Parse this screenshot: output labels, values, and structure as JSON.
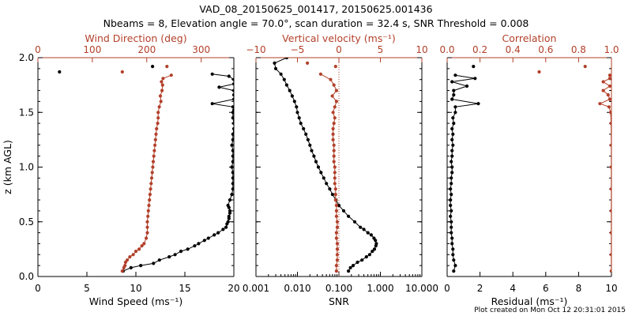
{
  "header": {
    "title": "VAD_08_20150625_001417, 20150625.001436",
    "subtitle": "Nbeams = 8, Elevation angle = 70.0°, scan duration = 32.4 s, SNR Threshold = 0.008"
  },
  "footer": {
    "created": "Plot created on Mon Oct 12 20:31:01 2015"
  },
  "colors": {
    "black": "#000000",
    "red": "#b2402a"
  },
  "chart_data": [
    {
      "type": "line",
      "panel": "wind",
      "ylabel": "z (km AGL)",
      "ylim": [
        0,
        2
      ],
      "yticks": [
        "0.0",
        "0.5",
        "1.0",
        "1.5",
        "2.0"
      ],
      "bottom_axis": {
        "label": "Wind Speed (ms⁻¹)",
        "range": [
          0,
          20
        ],
        "ticks": [
          "0",
          "5",
          "10",
          "15",
          "20"
        ]
      },
      "top_axis": {
        "label": "Wind Direction (deg)",
        "range": [
          0,
          360
        ],
        "ticks": [
          "0",
          "100",
          "200",
          "300"
        ]
      },
      "series": [
        {
          "axis": "bottom",
          "color": "#000000",
          "style": "line+points",
          "z": [
            0.05,
            0.08,
            0.1,
            0.12,
            0.15,
            0.18,
            0.2,
            0.23,
            0.25,
            0.28,
            0.3,
            0.33,
            0.35,
            0.38,
            0.4,
            0.43,
            0.45,
            0.48,
            0.5,
            0.53,
            0.55,
            0.58,
            0.6,
            0.63,
            0.65,
            0.7,
            0.75,
            0.8,
            0.85,
            0.9,
            0.95,
            1.0,
            1.05,
            1.1,
            1.15,
            1.2,
            1.25,
            1.3,
            1.35,
            1.4,
            1.45,
            1.5,
            1.52,
            1.55,
            1.58,
            1.62,
            1.66,
            1.7,
            1.73,
            1.76,
            1.8,
            1.83,
            1.85
          ],
          "values": [
            8.7,
            9.5,
            10.5,
            11.8,
            12.4,
            13.4,
            14.0,
            14.6,
            15.3,
            16.0,
            16.4,
            17.0,
            17.4,
            18.0,
            18.4,
            18.9,
            19.2,
            19.3,
            19.4,
            19.5,
            19.5,
            19.6,
            19.6,
            19.5,
            19.4,
            19.6,
            19.8,
            19.9,
            19.9,
            19.9,
            19.9,
            19.8,
            19.9,
            19.9,
            19.9,
            19.8,
            19.9,
            19.9,
            20.0,
            20.0,
            19.9,
            19.9,
            20.0,
            19.9,
            17.8,
            20.0,
            20.0,
            20.0,
            18.5,
            20.0,
            20.0,
            19.5,
            17.8
          ]
        },
        {
          "axis": "top",
          "color": "#b2402a",
          "style": "line+points",
          "z": [
            0.05,
            0.08,
            0.1,
            0.13,
            0.15,
            0.18,
            0.2,
            0.23,
            0.25,
            0.28,
            0.3,
            0.35,
            0.4,
            0.45,
            0.5,
            0.55,
            0.6,
            0.65,
            0.7,
            0.75,
            0.8,
            0.85,
            0.9,
            0.95,
            1.0,
            1.05,
            1.1,
            1.15,
            1.2,
            1.25,
            1.3,
            1.35,
            1.4,
            1.45,
            1.5,
            1.55,
            1.6,
            1.65,
            1.7,
            1.75,
            1.78,
            1.81,
            1.84
          ],
          "values": [
            155,
            158,
            160,
            161,
            164,
            169,
            175,
            180,
            186,
            191,
            195,
            199,
            201,
            201,
            201,
            202,
            203,
            204,
            205,
            206,
            207,
            208,
            209,
            210,
            211,
            212,
            213,
            214,
            215,
            216,
            217,
            218,
            220,
            221,
            221,
            223,
            226,
            225,
            228,
            229,
            227,
            230,
            245
          ]
        },
        {
          "axis": "top",
          "color": "#b2402a",
          "style": "points",
          "z": [
            1.87,
            1.92
          ],
          "values": [
            155,
            237
          ]
        },
        {
          "axis": "bottom",
          "color": "#000000",
          "style": "points",
          "z": [
            1.87,
            1.92
          ],
          "values": [
            2.2,
            11.7
          ]
        }
      ]
    },
    {
      "type": "line",
      "panel": "snr",
      "xscale": "log",
      "ylim": [
        0,
        2
      ],
      "bottom_axis": {
        "label": "SNR",
        "range": [
          0.001,
          10
        ],
        "ticks": [
          "0.001",
          "0.010",
          "0.100",
          "1.000",
          "10.000"
        ]
      },
      "top_axis": {
        "label": "Vertical velocity (ms⁻¹)",
        "range": [
          -10,
          10
        ],
        "ticks": [
          "−10",
          "−5",
          "0",
          "5",
          "10"
        ]
      },
      "reference_line": {
        "axis": "top",
        "value": 0,
        "style": "dotted"
      },
      "series": [
        {
          "axis": "bottom",
          "color": "#000000",
          "style": "line+points",
          "z": [
            0.05,
            0.08,
            0.1,
            0.13,
            0.15,
            0.18,
            0.2,
            0.23,
            0.25,
            0.28,
            0.3,
            0.33,
            0.35,
            0.38,
            0.4,
            0.43,
            0.45,
            0.5,
            0.55,
            0.6,
            0.65,
            0.7,
            0.75,
            0.8,
            0.85,
            0.9,
            0.95,
            1.0,
            1.05,
            1.1,
            1.15,
            1.2,
            1.25,
            1.3,
            1.35,
            1.4,
            1.45,
            1.5,
            1.55,
            1.6,
            1.65,
            1.7,
            1.75,
            1.8,
            1.85,
            1.9,
            1.95,
            2.0
          ],
          "values": [
            0.17,
            0.19,
            0.22,
            0.28,
            0.36,
            0.46,
            0.55,
            0.64,
            0.72,
            0.78,
            0.8,
            0.76,
            0.7,
            0.6,
            0.5,
            0.4,
            0.33,
            0.24,
            0.17,
            0.13,
            0.1,
            0.085,
            0.07,
            0.06,
            0.05,
            0.043,
            0.037,
            0.032,
            0.028,
            0.025,
            0.022,
            0.02,
            0.018,
            0.016,
            0.014,
            0.012,
            0.011,
            0.01,
            0.0095,
            0.0085,
            0.0075,
            0.0065,
            0.0055,
            0.0048,
            0.004,
            0.003,
            0.0028,
            0.0055
          ]
        },
        {
          "axis": "top",
          "color": "#b2402a",
          "style": "line+points",
          "z": [
            0.05,
            0.1,
            0.15,
            0.2,
            0.25,
            0.3,
            0.35,
            0.4,
            0.45,
            0.5,
            0.55,
            0.6,
            0.65,
            0.7,
            0.75,
            0.8,
            0.85,
            0.9,
            0.95,
            1.0,
            1.05,
            1.1,
            1.15,
            1.2,
            1.25,
            1.3,
            1.35,
            1.4,
            1.45,
            1.5,
            1.55,
            1.6,
            1.65,
            1.7,
            1.75,
            1.8,
            1.85
          ],
          "values": [
            -0.3,
            -0.3,
            -0.2,
            -0.2,
            -0.2,
            -0.2,
            -0.3,
            -0.3,
            -0.2,
            -0.2,
            -0.3,
            -0.3,
            -0.3,
            -0.4,
            -0.4,
            -0.4,
            -0.5,
            -0.5,
            -0.5,
            -0.5,
            -0.6,
            -0.6,
            -0.6,
            -0.6,
            -0.7,
            -0.7,
            -0.7,
            -0.6,
            -0.5,
            -0.7,
            -0.5,
            -0.3,
            -0.8,
            -0.3,
            -0.6,
            -1.0,
            -2.2
          ]
        },
        {
          "axis": "top",
          "color": "#b2402a",
          "style": "points",
          "z": [
            1.92,
            1.95
          ],
          "values": [
            -0.4,
            -3.8
          ]
        }
      ]
    },
    {
      "type": "line",
      "panel": "residual",
      "ylim": [
        0,
        2
      ],
      "bottom_axis": {
        "label": "Residual (ms⁻¹)",
        "range": [
          0,
          10
        ],
        "ticks": [
          "0",
          "2",
          "4",
          "6",
          "8",
          "10"
        ]
      },
      "top_axis": {
        "label": "Correlation",
        "range": [
          0,
          1
        ],
        "ticks": [
          "0.0",
          "0.2",
          "0.4",
          "0.6",
          "0.8",
          "1.0"
        ]
      },
      "series": [
        {
          "axis": "bottom",
          "color": "#000000",
          "style": "line+points",
          "z": [
            0.05,
            0.1,
            0.15,
            0.2,
            0.25,
            0.3,
            0.35,
            0.4,
            0.45,
            0.5,
            0.55,
            0.6,
            0.65,
            0.7,
            0.75,
            0.8,
            0.85,
            0.9,
            0.95,
            1.0,
            1.05,
            1.1,
            1.15,
            1.2,
            1.25,
            1.3,
            1.35,
            1.4,
            1.45,
            1.5,
            1.55,
            1.58,
            1.62,
            1.66,
            1.7,
            1.74,
            1.78,
            1.81,
            1.84
          ],
          "values": [
            0.4,
            0.5,
            0.4,
            0.35,
            0.35,
            0.3,
            0.3,
            0.25,
            0.25,
            0.25,
            0.2,
            0.25,
            0.2,
            0.2,
            0.25,
            0.2,
            0.25,
            0.25,
            0.3,
            0.3,
            0.25,
            0.3,
            0.3,
            0.35,
            0.3,
            0.35,
            0.3,
            0.4,
            0.35,
            0.5,
            0.5,
            1.9,
            0.3,
            0.4,
            0.4,
            1.2,
            0.3,
            1.7,
            0.5
          ]
        },
        {
          "axis": "bottom",
          "color": "#000000",
          "style": "points",
          "z": [
            1.92
          ],
          "values": [
            1.6
          ]
        },
        {
          "axis": "top",
          "color": "#b2402a",
          "style": "line+points",
          "z": [
            0.05,
            0.2,
            0.4,
            0.6,
            0.8,
            1.0,
            1.2,
            1.4,
            1.5,
            1.55,
            1.58,
            1.62,
            1.66,
            1.7,
            1.74,
            1.78,
            1.81,
            1.84
          ],
          "values": [
            0.999,
            0.999,
            0.999,
            0.999,
            0.999,
            0.999,
            0.999,
            0.998,
            0.995,
            0.985,
            0.93,
            0.99,
            0.98,
            0.95,
            0.99,
            0.95,
            0.99,
            0.99
          ]
        },
        {
          "axis": "top",
          "color": "#b2402a",
          "style": "points",
          "z": [
            1.87,
            1.92
          ],
          "values": [
            0.56,
            0.84
          ]
        }
      ]
    }
  ]
}
